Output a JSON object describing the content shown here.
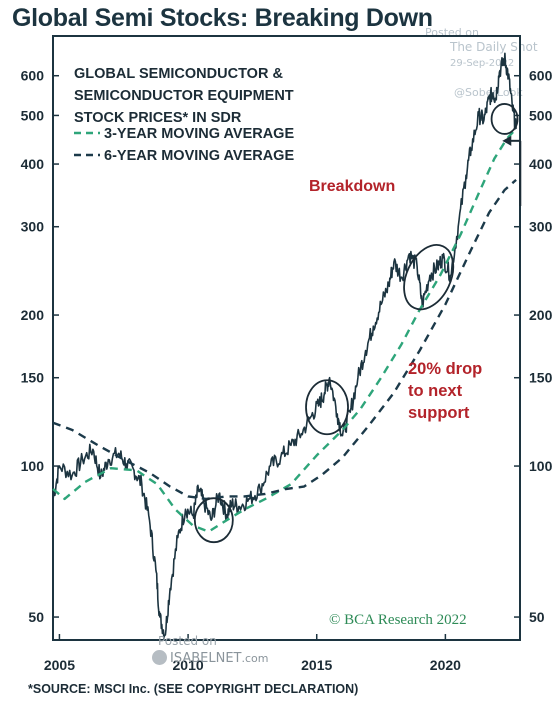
{
  "title": "Global Semi Stocks: Breaking Down",
  "watermarks": {
    "posted_on_top": "Posted on",
    "daily_shot": "The Daily Shot",
    "date": "29-Sep-2022",
    "handle": "@SoberLook",
    "posted_on_bottom": "Posted on",
    "isabelnet": "ISABELNET",
    "isabelnet_suffix": ".com"
  },
  "footnote": "*SOURCE: MSCI Inc. (SEE COPYRIGHT DECLARATION)",
  "colors": {
    "frame": "#1c3440",
    "price": "#1c3440",
    "ma3": "#2ea57a",
    "ma6": "#1c3a4a",
    "annotation_red": "#b3232a",
    "credit_green": "#2e8b57",
    "circle": "#1c2c36"
  },
  "chart_data": {
    "type": "line",
    "legend": {
      "heading_lines": [
        "GLOBAL SEMICONDUCTOR &",
        "SEMICONDUCTOR EQUIPMENT",
        "STOCK PRICES* IN SDR"
      ],
      "entries": [
        "3-YEAR MOVING AVERAGE",
        "6-YEAR MOVING AVERAGE"
      ],
      "placement": "top-left"
    },
    "x_ticks": [
      2005,
      2010,
      2015,
      2020
    ],
    "xlim": [
      2004.75,
      2022.9
    ],
    "y_scale": "log",
    "ylim": [
      45,
      720
    ],
    "y_ticks": [
      50,
      100,
      150,
      200,
      300,
      400,
      500,
      600
    ],
    "grid": false,
    "series": [
      {
        "name": "GLOBAL SEMICONDUCTOR & SEMICONDUCTOR EQUIPMENT STOCK PRICES* IN SDR",
        "style": "solid",
        "x": [
          2004.75,
          2005.0,
          2005.5,
          2005.9,
          2006.3,
          2006.6,
          2006.9,
          2007.3,
          2007.6,
          2007.9,
          2008.2,
          2008.5,
          2008.75,
          2008.9,
          2009.1,
          2009.3,
          2009.6,
          2009.9,
          2010.2,
          2010.4,
          2010.6,
          2010.9,
          2011.2,
          2011.5,
          2011.7,
          2012.0,
          2012.4,
          2012.8,
          2013.2,
          2013.6,
          2014.0,
          2014.4,
          2014.8,
          2015.1,
          2015.3,
          2015.5,
          2015.8,
          2016.0,
          2016.3,
          2016.6,
          2016.9,
          2017.2,
          2017.5,
          2017.8,
          2018.0,
          2018.3,
          2018.6,
          2018.9,
          2019.1,
          2019.4,
          2019.7,
          2019.9,
          2020.2,
          2020.5,
          2020.8,
          2021.0,
          2021.3,
          2021.5,
          2021.7,
          2021.85,
          2021.95,
          2022.1,
          2022.3,
          2022.45,
          2022.6,
          2022.75
        ],
        "values": [
          86,
          100,
          96,
          103,
          108,
          95,
          103,
          106,
          101,
          98,
          92,
          78,
          62,
          50,
          46,
          57,
          72,
          82,
          80,
          90,
          85,
          78,
          88,
          80,
          84,
          83,
          86,
          90,
          100,
          104,
          110,
          116,
          126,
          133,
          140,
          150,
          127,
          115,
          128,
          150,
          170,
          190,
          210,
          230,
          255,
          238,
          265,
          250,
          210,
          240,
          250,
          260,
          240,
          300,
          380,
          430,
          500,
          490,
          540,
          555,
          540,
          610,
          650,
          600,
          520,
          470
        ]
      },
      {
        "name": "3-YEAR MOVING AVERAGE",
        "style": "dashed",
        "x": [
          2004.75,
          2005.2,
          2006.0,
          2007.0,
          2008.0,
          2008.8,
          2009.5,
          2010.2,
          2010.8,
          2011.5,
          2012.2,
          2013.0,
          2014.0,
          2015.0,
          2016.0,
          2016.7,
          2017.5,
          2018.3,
          2019.0,
          2019.8,
          2020.6,
          2021.3,
          2021.9,
          2022.4,
          2022.75
        ],
        "values": [
          90,
          86,
          93,
          99,
          98,
          92,
          82,
          76,
          74,
          78,
          82,
          86,
          92,
          105,
          118,
          130,
          150,
          175,
          205,
          240,
          290,
          350,
          410,
          450,
          470
        ]
      },
      {
        "name": "6-YEAR MOVING AVERAGE",
        "style": "dashed",
        "x": [
          2004.75,
          2005.5,
          2006.5,
          2007.5,
          2008.5,
          2009.3,
          2010.0,
          2010.7,
          2011.5,
          2012.2,
          2013.0,
          2013.8,
          2014.5,
          2015.2,
          2016.0,
          2017.0,
          2018.0,
          2019.0,
          2020.0,
          2021.0,
          2021.7,
          2022.3,
          2022.75
        ],
        "values": [
          122,
          118,
          110,
          103,
          97,
          91,
          87,
          86,
          87,
          87,
          88,
          90,
          91,
          96,
          104,
          120,
          140,
          170,
          210,
          270,
          320,
          355,
          372
        ]
      }
    ],
    "circles": [
      {
        "x": 2011.0,
        "y": 78
      },
      {
        "x": 2015.4,
        "y": 131
      },
      {
        "x": 2019.35,
        "y": 238
      },
      {
        "x": 2022.3,
        "y": 492
      }
    ],
    "annotations": {
      "breakdown": "Breakdown",
      "drop_lines": [
        "20% drop",
        "to next",
        "support"
      ],
      "arrow": {
        "x_from": 2022.6,
        "y_from": 330,
        "x_to": 2022.6,
        "y_to": 445
      }
    },
    "credit": "© BCA Research 2022"
  }
}
